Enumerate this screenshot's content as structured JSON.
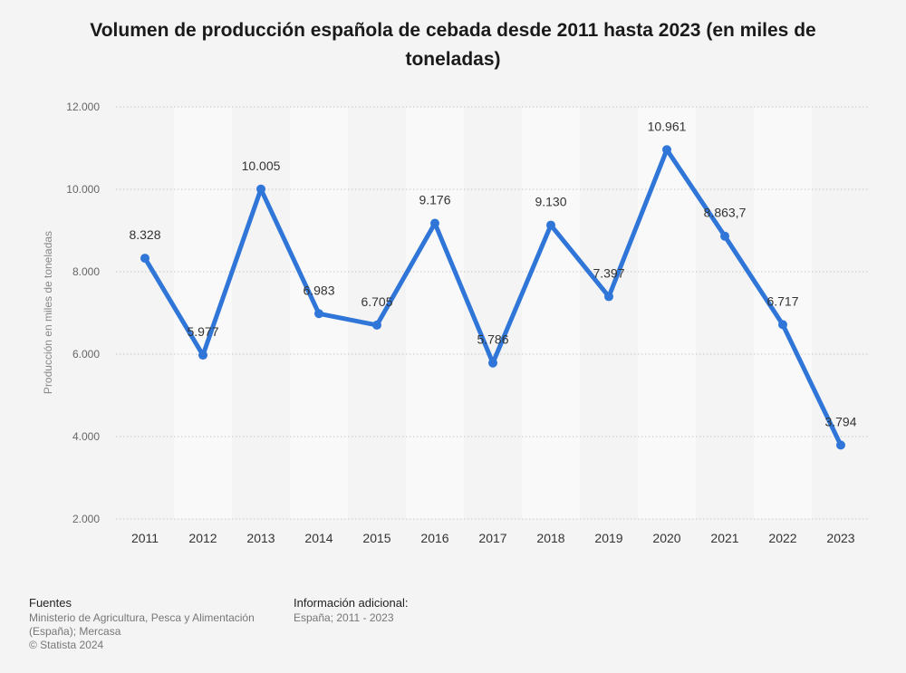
{
  "title": "Volumen de producción española de cebada desde 2011 hasta 2023 (en miles de toneladas)",
  "chart_data": {
    "type": "line",
    "title": "Volumen de producción española de cebada desde 2011 hasta 2023 (en miles de toneladas)",
    "xlabel": "",
    "ylabel": "Producción en miles de toneladas",
    "categories": [
      "2011",
      "2012",
      "2013",
      "2014",
      "2015",
      "2016",
      "2017",
      "2018",
      "2019",
      "2020",
      "2021",
      "2022",
      "2023"
    ],
    "values": [
      8328,
      5977,
      10005,
      6983,
      6705,
      9176,
      5786,
      9130,
      7397,
      10961,
      8863.7,
      6717,
      3794
    ],
    "value_labels": [
      "8.328",
      "5.977",
      "10.005",
      "6.983",
      "6.705",
      "9.176",
      "5.786",
      "9.130",
      "7.397",
      "10.961",
      "8.863,7",
      "6.717",
      "3.794"
    ],
    "ylim": [
      2000,
      12000
    ],
    "yticks": [
      2000,
      4000,
      6000,
      8000,
      10000,
      12000
    ],
    "ytick_labels": [
      "2.000",
      "4.000",
      "6.000",
      "8.000",
      "10.000",
      "12.000"
    ],
    "grid": true,
    "line_color": "#2f76d8",
    "band_color": "#f9f9f9"
  },
  "footer": {
    "sources_heading": "Fuentes",
    "sources_lines": [
      "Ministerio de Agricultura, Pesca y Alimentación",
      "(España); Mercasa",
      "© Statista 2024"
    ],
    "info_heading": "Información adicional:",
    "info_text": "España; 2011 - 2023"
  }
}
